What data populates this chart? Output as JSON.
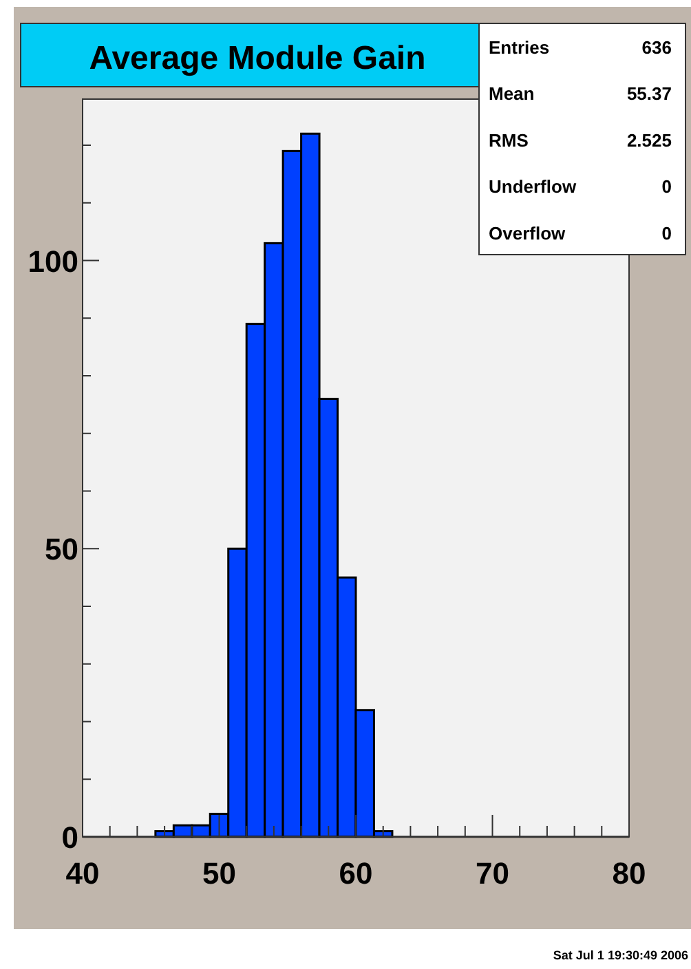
{
  "chart_data": {
    "type": "histogram",
    "title": "Average Module Gain",
    "bins": [
      40,
      41.333,
      42.667,
      44,
      45.333,
      46.667,
      48,
      49.333,
      50.667,
      52,
      53.333,
      54.667,
      56,
      57.333,
      58.667,
      60,
      61.333,
      62.667,
      64,
      65.333,
      66.667,
      68,
      69.333,
      70.667,
      72,
      73.333,
      74.667,
      76,
      77.333,
      78.667,
      80
    ],
    "values": [
      0,
      0,
      0,
      0,
      1,
      2,
      2,
      4,
      50,
      89,
      103,
      119,
      122,
      76,
      45,
      22,
      1,
      0,
      0,
      0,
      0,
      0,
      0,
      0,
      0,
      0,
      0,
      0,
      0,
      0
    ],
    "color": "#0040ff",
    "xlim": [
      40,
      80
    ],
    "xticks": [
      40,
      {
        "value": 42,
        "label": null
      },
      {
        "value": 44,
        "label": null
      },
      {
        "value": 46,
        "label": null
      },
      {
        "value": 48,
        "label": null
      },
      50,
      {
        "value": 52,
        "label": null
      },
      {
        "value": 54,
        "label": null
      },
      {
        "value": 56,
        "label": null
      },
      {
        "value": 58,
        "label": null
      },
      60,
      {
        "value": 62,
        "label": null
      },
      {
        "value": 64,
        "label": null
      },
      {
        "value": 66,
        "label": null
      },
      {
        "value": 68,
        "label": null
      },
      70,
      {
        "value": 72,
        "label": null
      },
      {
        "value": 74,
        "label": null
      },
      {
        "value": 76,
        "label": null
      },
      {
        "value": 78,
        "label": null
      },
      80
    ],
    "ylim": [
      0,
      128
    ],
    "yticks": [
      0,
      {
        "value": 10,
        "label": null
      },
      {
        "value": 20,
        "label": null
      },
      {
        "value": 30,
        "label": null
      },
      {
        "value": 40,
        "label": null
      },
      50,
      {
        "value": 60,
        "label": null
      },
      {
        "value": 70,
        "label": null
      },
      {
        "value": 80,
        "label": null
      },
      {
        "value": 90,
        "label": null
      },
      100,
      {
        "value": 110,
        "label": null
      },
      {
        "value": 120,
        "label": null
      }
    ],
    "grid": false,
    "annotations": [
      "Entries",
      "636",
      "Mean",
      "55.37",
      "RMS",
      "2.525",
      "Underflow",
      "0",
      "Overflow",
      "0",
      "Sat Jul  1 19:30:49 2006"
    ]
  }
}
